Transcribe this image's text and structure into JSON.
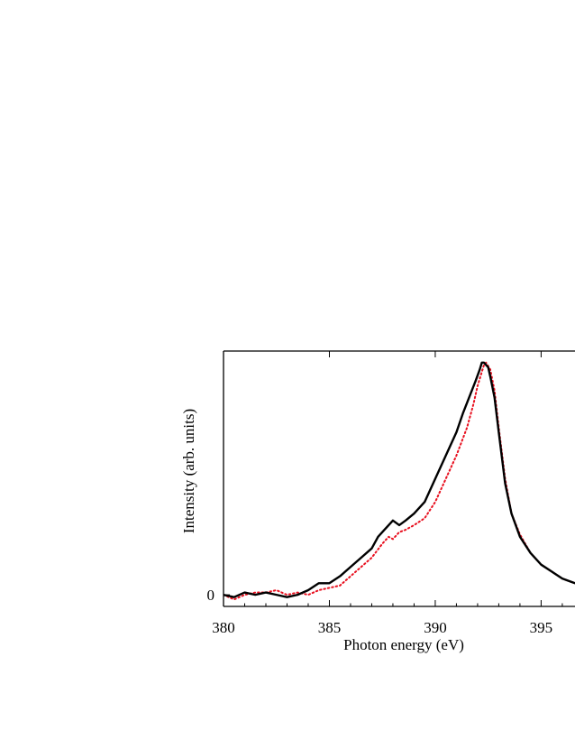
{
  "chart_data": {
    "type": "line",
    "title": "",
    "xlabel": "Photon energy (eV)",
    "ylabel": "Intensity (arb. units)",
    "xlim": [
      380,
      396.6
    ],
    "ylim": [
      -0.05,
      1.05
    ],
    "xticks": [
      380,
      385,
      390,
      395
    ],
    "xtick_labels": [
      "380",
      "385",
      "390",
      "395"
    ],
    "yticks": [
      0
    ],
    "ytick_labels": [
      "0"
    ],
    "grid": false,
    "legend": "none",
    "series": [
      {
        "color": "#000000",
        "style": "solid",
        "x": [
          380.0,
          380.5,
          381.0,
          381.5,
          382.0,
          382.5,
          383.0,
          383.5,
          384.0,
          384.5,
          385.0,
          385.5,
          386.0,
          386.5,
          387.0,
          387.3,
          387.6,
          387.8,
          388.0,
          388.3,
          388.6,
          389.0,
          389.5,
          390.0,
          390.5,
          391.0,
          391.3,
          391.6,
          391.9,
          392.1,
          392.2,
          392.3,
          392.4,
          392.5,
          392.6,
          392.8,
          393.0,
          393.3,
          393.6,
          394.0,
          394.5,
          395.0,
          395.5,
          396.0,
          396.6
        ],
        "y": [
          0.0,
          -0.01,
          0.01,
          0.0,
          0.01,
          0.0,
          -0.01,
          0.0,
          0.02,
          0.05,
          0.05,
          0.08,
          0.12,
          0.16,
          0.2,
          0.25,
          0.28,
          0.3,
          0.32,
          0.3,
          0.32,
          0.35,
          0.4,
          0.5,
          0.6,
          0.7,
          0.78,
          0.85,
          0.92,
          0.97,
          1.0,
          1.0,
          0.99,
          0.98,
          0.94,
          0.85,
          0.7,
          0.48,
          0.35,
          0.25,
          0.18,
          0.13,
          0.1,
          0.07,
          0.05
        ]
      },
      {
        "color": "#e8101f",
        "style": "dotted",
        "x": [
          380.0,
          380.5,
          381.0,
          381.5,
          382.0,
          382.5,
          383.0,
          383.5,
          384.0,
          384.5,
          385.0,
          385.5,
          386.0,
          386.5,
          387.0,
          387.5,
          387.8,
          388.0,
          388.3,
          388.6,
          389.0,
          389.5,
          390.0,
          390.5,
          391.0,
          391.5,
          391.8,
          392.0,
          392.2,
          392.3,
          392.4,
          392.6,
          392.8,
          393.0,
          393.3,
          393.6,
          394.0,
          394.5,
          395.0,
          395.5,
          396.0,
          396.6
        ],
        "y": [
          0.0,
          -0.02,
          0.0,
          0.01,
          0.01,
          0.02,
          0.0,
          0.01,
          0.0,
          0.02,
          0.03,
          0.04,
          0.08,
          0.12,
          0.16,
          0.22,
          0.25,
          0.24,
          0.27,
          0.28,
          0.3,
          0.33,
          0.4,
          0.5,
          0.6,
          0.72,
          0.82,
          0.9,
          0.96,
          0.99,
          1.0,
          0.97,
          0.88,
          0.72,
          0.5,
          0.35,
          0.26,
          0.18,
          0.13,
          0.1,
          0.07,
          0.05
        ]
      }
    ]
  }
}
